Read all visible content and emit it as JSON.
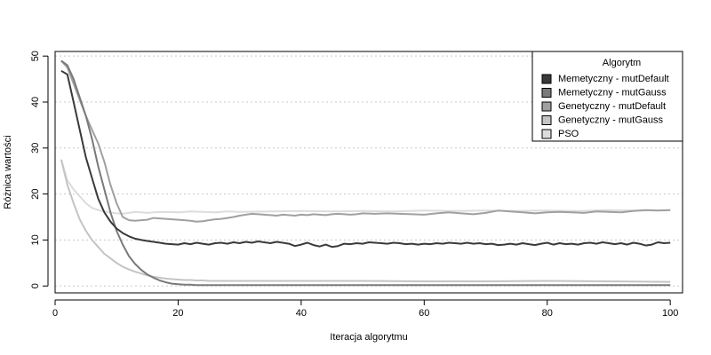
{
  "chart_data": {
    "type": "line",
    "xlabel": "Iteracja algorytmu",
    "ylabel": "Różnica wartości",
    "xlim": [
      0,
      102
    ],
    "ylim": [
      -1.5,
      51
    ],
    "xticks": [
      0,
      20,
      40,
      60,
      80,
      100
    ],
    "yticks": [
      0,
      10,
      20,
      30,
      40,
      50
    ],
    "grid": "horizontal-dotted",
    "legend": {
      "title": "Algorytm",
      "position": "top-right"
    },
    "series": [
      {
        "name": "Memetyczny - mutDefault",
        "color": "#3a3a3a",
        "points": [
          [
            1,
            46.8
          ],
          [
            2,
            46.0
          ],
          [
            3,
            40.0
          ],
          [
            4,
            34.0
          ],
          [
            5,
            28.0
          ],
          [
            6,
            23.5
          ],
          [
            7,
            19.0
          ],
          [
            8,
            16.0
          ],
          [
            9,
            14.0
          ],
          [
            10,
            12.5
          ],
          [
            11,
            11.5
          ],
          [
            12,
            10.8
          ],
          [
            13,
            10.3
          ],
          [
            14,
            10.0
          ],
          [
            15,
            9.8
          ],
          [
            16,
            9.6
          ],
          [
            17,
            9.4
          ],
          [
            18,
            9.2
          ],
          [
            19,
            9.1
          ],
          [
            20,
            9.0
          ],
          [
            21,
            9.3
          ],
          [
            22,
            9.1
          ],
          [
            23,
            9.4
          ],
          [
            24,
            9.2
          ],
          [
            25,
            9.0
          ],
          [
            26,
            9.3
          ],
          [
            27,
            9.4
          ],
          [
            28,
            9.2
          ],
          [
            29,
            9.5
          ],
          [
            30,
            9.3
          ],
          [
            31,
            9.6
          ],
          [
            32,
            9.4
          ],
          [
            33,
            9.7
          ],
          [
            34,
            9.5
          ],
          [
            35,
            9.3
          ],
          [
            36,
            9.6
          ],
          [
            37,
            9.4
          ],
          [
            38,
            9.2
          ],
          [
            39,
            8.7
          ],
          [
            40,
            9.0
          ],
          [
            41,
            9.4
          ],
          [
            42,
            8.9
          ],
          [
            43,
            8.6
          ],
          [
            44,
            9.0
          ],
          [
            45,
            8.5
          ],
          [
            46,
            8.7
          ],
          [
            47,
            9.2
          ],
          [
            48,
            9.1
          ],
          [
            49,
            9.3
          ],
          [
            50,
            9.2
          ],
          [
            51,
            9.5
          ],
          [
            52,
            9.4
          ],
          [
            53,
            9.3
          ],
          [
            54,
            9.2
          ],
          [
            55,
            9.4
          ],
          [
            56,
            9.3
          ],
          [
            57,
            9.1
          ],
          [
            58,
            9.2
          ],
          [
            59,
            9.0
          ],
          [
            60,
            9.2
          ],
          [
            61,
            9.1
          ],
          [
            62,
            9.3
          ],
          [
            63,
            9.2
          ],
          [
            64,
            9.4
          ],
          [
            65,
            9.3
          ],
          [
            66,
            9.2
          ],
          [
            67,
            9.4
          ],
          [
            68,
            9.2
          ],
          [
            69,
            9.3
          ],
          [
            70,
            9.1
          ],
          [
            71,
            9.2
          ],
          [
            72,
            8.9
          ],
          [
            73,
            9.0
          ],
          [
            74,
            9.2
          ],
          [
            75,
            9.0
          ],
          [
            76,
            9.3
          ],
          [
            77,
            9.1
          ],
          [
            78,
            8.9
          ],
          [
            79,
            9.2
          ],
          [
            80,
            9.4
          ],
          [
            81,
            9.0
          ],
          [
            82,
            9.3
          ],
          [
            83,
            9.1
          ],
          [
            84,
            9.2
          ],
          [
            85,
            9.0
          ],
          [
            86,
            9.3
          ],
          [
            87,
            9.4
          ],
          [
            88,
            9.2
          ],
          [
            89,
            9.5
          ],
          [
            90,
            9.3
          ],
          [
            91,
            9.1
          ],
          [
            92,
            9.3
          ],
          [
            93,
            9.0
          ],
          [
            94,
            9.4
          ],
          [
            95,
            9.2
          ],
          [
            96,
            8.8
          ],
          [
            97,
            9.0
          ],
          [
            98,
            9.5
          ],
          [
            99,
            9.3
          ],
          [
            100,
            9.4
          ]
        ]
      },
      {
        "name": "Memetyczny - mutGauss",
        "color": "#7a7a7a",
        "points": [
          [
            1,
            49.0
          ],
          [
            2,
            48.0
          ],
          [
            3,
            45.0
          ],
          [
            4,
            41.0
          ],
          [
            5,
            37.0
          ],
          [
            6,
            32.0
          ],
          [
            7,
            26.0
          ],
          [
            8,
            21.0
          ],
          [
            9,
            16.0
          ],
          [
            10,
            12.0
          ],
          [
            11,
            9.0
          ],
          [
            12,
            6.5
          ],
          [
            13,
            4.8
          ],
          [
            14,
            3.5
          ],
          [
            15,
            2.5
          ],
          [
            16,
            1.8
          ],
          [
            17,
            1.2
          ],
          [
            18,
            0.8
          ],
          [
            19,
            0.5
          ],
          [
            20,
            0.4
          ],
          [
            21,
            0.3
          ],
          [
            22,
            0.3
          ],
          [
            23,
            0.2
          ],
          [
            24,
            0.2
          ],
          [
            25,
            0.2
          ],
          [
            30,
            0.2
          ],
          [
            40,
            0.2
          ],
          [
            50,
            0.2
          ],
          [
            60,
            0.2
          ],
          [
            70,
            0.2
          ],
          [
            80,
            0.2
          ],
          [
            90,
            0.2
          ],
          [
            100,
            0.2
          ]
        ]
      },
      {
        "name": "Genetyczny - mutDefault",
        "color": "#a0a0a0",
        "points": [
          [
            1,
            49.0
          ],
          [
            2,
            47.5
          ],
          [
            3,
            44.0
          ],
          [
            4,
            40.5
          ],
          [
            5,
            37.0
          ],
          [
            6,
            34.0
          ],
          [
            7,
            31.0
          ],
          [
            8,
            27.0
          ],
          [
            9,
            22.0
          ],
          [
            10,
            18.0
          ],
          [
            11,
            15.0
          ],
          [
            12,
            14.3
          ],
          [
            13,
            14.2
          ],
          [
            14,
            14.3
          ],
          [
            15,
            14.4
          ],
          [
            16,
            14.8
          ],
          [
            17,
            14.7
          ],
          [
            18,
            14.6
          ],
          [
            19,
            14.5
          ],
          [
            20,
            14.4
          ],
          [
            21,
            14.3
          ],
          [
            22,
            14.2
          ],
          [
            23,
            14.0
          ],
          [
            24,
            14.1
          ],
          [
            25,
            14.3
          ],
          [
            26,
            14.5
          ],
          [
            27,
            14.6
          ],
          [
            28,
            14.8
          ],
          [
            29,
            15.0
          ],
          [
            30,
            15.3
          ],
          [
            31,
            15.5
          ],
          [
            32,
            15.7
          ],
          [
            33,
            15.6
          ],
          [
            34,
            15.5
          ],
          [
            35,
            15.4
          ],
          [
            36,
            15.3
          ],
          [
            37,
            15.5
          ],
          [
            38,
            15.4
          ],
          [
            39,
            15.3
          ],
          [
            40,
            15.5
          ],
          [
            41,
            15.4
          ],
          [
            42,
            15.6
          ],
          [
            43,
            15.5
          ],
          [
            44,
            15.4
          ],
          [
            45,
            15.6
          ],
          [
            46,
            15.7
          ],
          [
            47,
            15.6
          ],
          [
            48,
            15.5
          ],
          [
            49,
            15.6
          ],
          [
            50,
            15.8
          ],
          [
            52,
            15.7
          ],
          [
            54,
            15.8
          ],
          [
            56,
            15.7
          ],
          [
            58,
            15.6
          ],
          [
            60,
            15.5
          ],
          [
            62,
            15.8
          ],
          [
            64,
            16.0
          ],
          [
            66,
            15.8
          ],
          [
            68,
            15.6
          ],
          [
            70,
            15.9
          ],
          [
            72,
            16.4
          ],
          [
            74,
            16.2
          ],
          [
            76,
            16.0
          ],
          [
            78,
            15.8
          ],
          [
            80,
            16.0
          ],
          [
            82,
            16.1
          ],
          [
            84,
            16.0
          ],
          [
            86,
            15.9
          ],
          [
            88,
            16.2
          ],
          [
            90,
            16.1
          ],
          [
            92,
            16.0
          ],
          [
            94,
            16.3
          ],
          [
            96,
            16.5
          ],
          [
            98,
            16.4
          ],
          [
            100,
            16.5
          ]
        ]
      },
      {
        "name": "Genetyczny - mutGauss",
        "color": "#c4c4c4",
        "points": [
          [
            1,
            27.5
          ],
          [
            2,
            22.0
          ],
          [
            3,
            18.0
          ],
          [
            4,
            14.5
          ],
          [
            5,
            12.0
          ],
          [
            6,
            10.0
          ],
          [
            7,
            8.5
          ],
          [
            8,
            7.0
          ],
          [
            9,
            6.0
          ],
          [
            10,
            5.0
          ],
          [
            11,
            4.2
          ],
          [
            12,
            3.6
          ],
          [
            13,
            3.1
          ],
          [
            14,
            2.7
          ],
          [
            15,
            2.3
          ],
          [
            16,
            2.0
          ],
          [
            17,
            1.8
          ],
          [
            18,
            1.6
          ],
          [
            19,
            1.5
          ],
          [
            20,
            1.4
          ],
          [
            21,
            1.3
          ],
          [
            22,
            1.3
          ],
          [
            23,
            1.2
          ],
          [
            24,
            1.2
          ],
          [
            25,
            1.1
          ],
          [
            30,
            1.1
          ],
          [
            40,
            1.1
          ],
          [
            50,
            1.1
          ],
          [
            60,
            1.0
          ],
          [
            70,
            1.0
          ],
          [
            80,
            1.1
          ],
          [
            90,
            1.0
          ],
          [
            100,
            0.9
          ]
        ]
      },
      {
        "name": "PSO",
        "color": "#dcdcdc",
        "points": [
          [
            1,
            27.5
          ],
          [
            2,
            23.0
          ],
          [
            3,
            21.0
          ],
          [
            4,
            19.5
          ],
          [
            5,
            18.0
          ],
          [
            6,
            17.0
          ],
          [
            7,
            16.5
          ],
          [
            8,
            16.2
          ],
          [
            9,
            16.0
          ],
          [
            10,
            15.8
          ],
          [
            11,
            15.7
          ],
          [
            12,
            15.9
          ],
          [
            13,
            16.1
          ],
          [
            14,
            16.0
          ],
          [
            15,
            15.9
          ],
          [
            16,
            16.0
          ],
          [
            18,
            16.1
          ],
          [
            20,
            16.0
          ],
          [
            22,
            16.2
          ],
          [
            24,
            16.1
          ],
          [
            26,
            16.0
          ],
          [
            28,
            16.2
          ],
          [
            30,
            16.1
          ],
          [
            35,
            16.2
          ],
          [
            40,
            16.3
          ],
          [
            45,
            16.2
          ],
          [
            50,
            16.3
          ],
          [
            55,
            16.2
          ],
          [
            60,
            16.4
          ],
          [
            65,
            16.3
          ],
          [
            70,
            16.4
          ],
          [
            75,
            16.3
          ],
          [
            80,
            16.4
          ],
          [
            85,
            16.3
          ],
          [
            90,
            16.5
          ],
          [
            95,
            16.4
          ],
          [
            100,
            16.5
          ]
        ]
      }
    ]
  }
}
